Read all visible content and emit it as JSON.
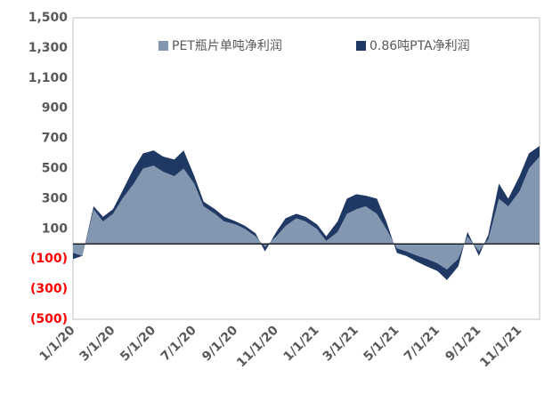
{
  "chart_data": {
    "type": "area",
    "x": [
      "1/1/20",
      "1/15/20",
      "2/1/20",
      "2/15/20",
      "3/1/20",
      "3/15/20",
      "4/1/20",
      "4/15/20",
      "5/1/20",
      "5/15/20",
      "6/1/20",
      "6/15/20",
      "7/1/20",
      "7/15/20",
      "8/1/20",
      "8/15/20",
      "9/1/20",
      "9/15/20",
      "10/1/20",
      "10/15/20",
      "11/1/20",
      "11/15/20",
      "12/1/20",
      "12/15/20",
      "1/1/21",
      "1/15/21",
      "2/1/21",
      "2/15/21",
      "3/1/21",
      "3/15/21",
      "4/1/21",
      "4/15/21",
      "5/1/21",
      "5/15/21",
      "6/1/21",
      "6/15/21",
      "7/1/21",
      "7/15/21",
      "8/1/21",
      "8/15/21",
      "9/1/21",
      "9/15/21",
      "10/1/21",
      "10/15/21",
      "11/1/21",
      "11/15/21",
      "12/1/21"
    ],
    "series": [
      {
        "name": "PET瓶片单吨净利润",
        "color": "#8497b0",
        "values": [
          -60,
          -80,
          230,
          150,
          200,
          300,
          400,
          500,
          520,
          480,
          450,
          500,
          400,
          250,
          200,
          150,
          130,
          100,
          50,
          -20,
          50,
          120,
          170,
          150,
          100,
          20,
          80,
          200,
          230,
          250,
          200,
          100,
          -30,
          -50,
          -80,
          -100,
          -130,
          -170,
          -100,
          50,
          -50,
          30,
          300,
          250,
          350,
          500,
          580
        ]
      },
      {
        "name": "0.86吨PTA净利润",
        "color": "#203864",
        "values": [
          -100,
          -80,
          250,
          180,
          230,
          350,
          500,
          600,
          620,
          580,
          560,
          620,
          450,
          280,
          230,
          180,
          150,
          120,
          70,
          -50,
          80,
          170,
          200,
          180,
          130,
          50,
          150,
          300,
          330,
          320,
          300,
          150,
          -60,
          -80,
          -120,
          -150,
          -180,
          -240,
          -150,
          80,
          -80,
          60,
          400,
          300,
          450,
          600,
          650
        ]
      }
    ],
    "xlim": [
      "1/1/20",
      "12/1/21"
    ],
    "xticks": [
      "1/1/20",
      "3/1/20",
      "5/1/20",
      "7/1/20",
      "9/1/20",
      "11/1/20",
      "1/1/21",
      "3/1/21",
      "5/1/21",
      "7/1/21",
      "9/1/21",
      "11/1/21"
    ],
    "ylim": [
      -500,
      1500
    ],
    "yticks": [
      {
        "value": 1500,
        "label": "1,500"
      },
      {
        "value": 1300,
        "label": "1,300"
      },
      {
        "value": 1100,
        "label": "1,100"
      },
      900,
      700,
      500,
      300,
      100,
      {
        "value": -100,
        "label": "(100)"
      },
      {
        "value": -300,
        "label": "(300)"
      },
      {
        "value": -500,
        "label": "(500)"
      }
    ],
    "negative_tick_color": "#ff0000",
    "tick_color": "#595959",
    "grid": false
  }
}
